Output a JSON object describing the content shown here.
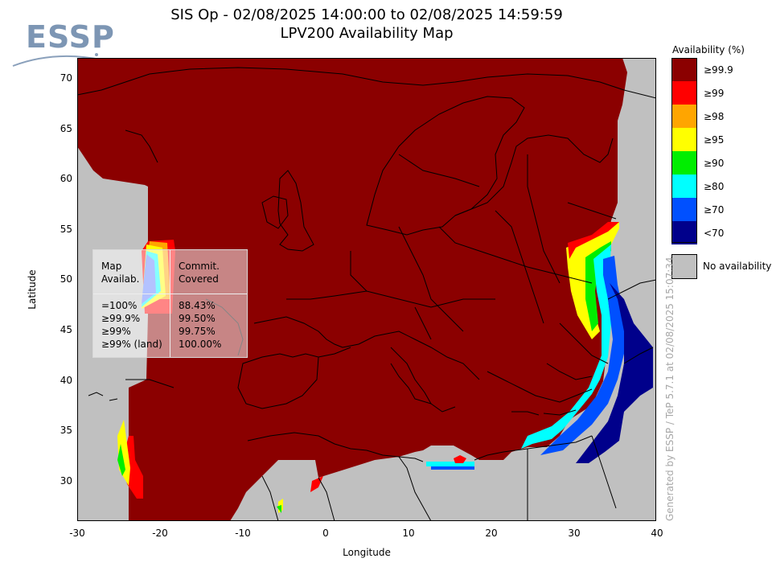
{
  "title_line1": "SIS Op - 02/08/2025 14:00:00 to 02/08/2025 14:59:59",
  "title_line2": "LPV200 Availability Map",
  "logo_text": "ESSP",
  "xlabel": "Longitude",
  "ylabel": "Latitude",
  "x_ticks": [
    "-30",
    "-20",
    "-10",
    "0",
    "10",
    "20",
    "30",
    "40"
  ],
  "y_ticks": [
    "70",
    "65",
    "60",
    "55",
    "50",
    "45",
    "40",
    "35",
    "30"
  ],
  "axis_ranges": {
    "lon": [
      -30,
      40
    ],
    "lat": [
      26,
      72
    ]
  },
  "legend": {
    "title": "Availability (%)",
    "items": [
      {
        "label": "≥99.9",
        "color": "#8b0000"
      },
      {
        "label": "≥99",
        "color": "#ff0000"
      },
      {
        "label": "≥98",
        "color": "#ffa500"
      },
      {
        "label": "≥95",
        "color": "#ffff00"
      },
      {
        "label": "≥90",
        "color": "#00ee00"
      },
      {
        "label": "≥80",
        "color": "#00ffff"
      },
      {
        "label": "≥70",
        "color": "#0050ff"
      },
      {
        "label": "<70",
        "color": "#00008b"
      }
    ],
    "no_availability": {
      "label": "No availability",
      "color": "#c0c0c0"
    }
  },
  "stats": {
    "header_left": [
      "Map",
      "Availab."
    ],
    "header_right": [
      "Commit.",
      "Covered"
    ],
    "rows": [
      {
        "level": "=100%",
        "covered": "88.43%"
      },
      {
        "level": "≥99.9%",
        "covered": "99.50%"
      },
      {
        "level": "≥99%",
        "covered": "99.75%"
      },
      {
        "level": "≥99% (land)",
        "covered": "100.00%"
      }
    ]
  },
  "watermark": "Generated by ESSP / TeP 5.7.1 at 02/08/2025 15:07:34"
}
